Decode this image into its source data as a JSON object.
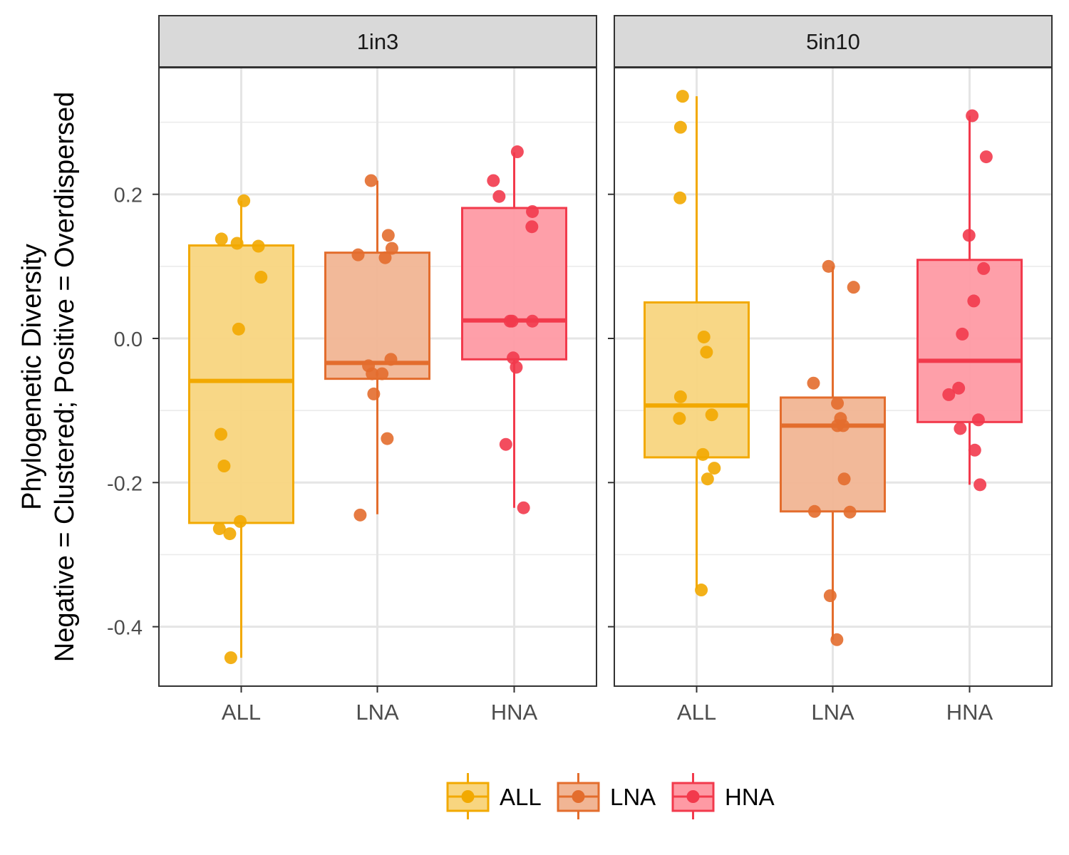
{
  "chart_data": {
    "type": "boxplot",
    "ylabel_lines": [
      "Phylogenetic Diversity",
      "Negative = Clustered; Positive = Overdispersed"
    ],
    "xlabel": "",
    "categories": [
      "ALL",
      "LNA",
      "HNA"
    ],
    "y_ticks": [
      "0.2",
      "0.0",
      "-0.2",
      "-0.4"
    ],
    "ylim": [
      -0.48,
      0.375
    ],
    "grid": true,
    "legend_position": "bottom",
    "legend": [
      {
        "name": "ALL",
        "color": "#F2A900",
        "fill": "#F8D57F"
      },
      {
        "name": "LNA",
        "color": "#E36D2D",
        "fill": "#F1B594"
      },
      {
        "name": "HNA",
        "color": "#F23A4C",
        "fill": "#FE9AA4"
      }
    ],
    "panels": [
      {
        "title": "1in3",
        "boxes": [
          {
            "category": "ALL",
            "whisker_low": -0.443,
            "q1": -0.256,
            "median": -0.059,
            "q3": 0.129,
            "whisker_high": 0.191,
            "points": [
              [
                0.05,
                0.191
              ],
              [
                -0.38,
                0.138
              ],
              [
                -0.08,
                0.132
              ],
              [
                0.33,
                0.128
              ],
              [
                0.38,
                0.085
              ],
              [
                -0.05,
                0.013
              ],
              [
                -0.39,
                -0.133
              ],
              [
                -0.33,
                -0.177
              ],
              [
                -0.02,
                -0.254
              ],
              [
                -0.42,
                -0.264
              ],
              [
                -0.22,
                -0.271
              ],
              [
                -0.2,
                -0.443
              ]
            ]
          },
          {
            "category": "LNA",
            "whisker_low": -0.244,
            "q1": -0.056,
            "median": -0.034,
            "q3": 0.119,
            "whisker_high": 0.219,
            "points": [
              [
                -0.12,
                0.219
              ],
              [
                -0.37,
                0.116
              ],
              [
                0.21,
                0.143
              ],
              [
                0.28,
                0.125
              ],
              [
                0.15,
                0.112
              ],
              [
                -0.17,
                -0.038
              ],
              [
                -0.1,
                -0.049
              ],
              [
                0.26,
                -0.029
              ],
              [
                0.09,
                -0.049
              ],
              [
                -0.07,
                -0.077
              ],
              [
                0.19,
                -0.139
              ],
              [
                -0.33,
                -0.245
              ]
            ]
          },
          {
            "category": "HNA",
            "whisker_low": -0.235,
            "q1": -0.029,
            "median": 0.025,
            "q3": 0.181,
            "whisker_high": 0.258,
            "points": [
              [
                0.06,
                0.259
              ],
              [
                -0.4,
                0.219
              ],
              [
                -0.29,
                0.197
              ],
              [
                0.35,
                0.176
              ],
              [
                0.34,
                0.155
              ],
              [
                -0.08,
                0.024
              ],
              [
                -0.04,
                0.024
              ],
              [
                0.35,
                0.024
              ],
              [
                -0.02,
                -0.027
              ],
              [
                0.04,
                -0.04
              ],
              [
                -0.16,
                -0.147
              ],
              [
                0.18,
                -0.235
              ]
            ]
          }
        ]
      },
      {
        "title": "5in10",
        "boxes": [
          {
            "category": "ALL",
            "whisker_low": -0.347,
            "q1": -0.165,
            "median": -0.093,
            "q3": 0.05,
            "whisker_high": 0.336,
            "points": [
              [
                -0.27,
                0.336
              ],
              [
                -0.31,
                0.293
              ],
              [
                -0.32,
                0.195
              ],
              [
                0.14,
                0.002
              ],
              [
                0.19,
                -0.019
              ],
              [
                -0.31,
                -0.081
              ],
              [
                -0.33,
                -0.111
              ],
              [
                0.29,
                -0.106
              ],
              [
                0.12,
                -0.161
              ],
              [
                0.21,
                -0.195
              ],
              [
                0.34,
                -0.18
              ],
              [
                0.09,
                -0.349
              ]
            ]
          },
          {
            "category": "LNA",
            "whisker_low": -0.418,
            "q1": -0.24,
            "median": -0.121,
            "q3": -0.082,
            "whisker_high": 0.1,
            "points": [
              [
                -0.08,
                0.1
              ],
              [
                0.4,
                0.071
              ],
              [
                -0.37,
                -0.062
              ],
              [
                0.09,
                -0.09
              ],
              [
                0.15,
                -0.111
              ],
              [
                0.09,
                -0.121
              ],
              [
                0.2,
                -0.121
              ],
              [
                0.22,
                -0.195
              ],
              [
                -0.35,
                -0.24
              ],
              [
                0.33,
                -0.241
              ],
              [
                -0.05,
                -0.357
              ],
              [
                0.08,
                -0.418
              ]
            ]
          },
          {
            "category": "HNA",
            "whisker_low": -0.203,
            "q1": -0.116,
            "median": -0.031,
            "q3": 0.109,
            "whisker_high": 0.309,
            "points": [
              [
                0.05,
                0.309
              ],
              [
                0.32,
                0.252
              ],
              [
                -0.01,
                0.143
              ],
              [
                0.27,
                0.097
              ],
              [
                0.08,
                0.052
              ],
              [
                -0.14,
                0.006
              ],
              [
                -0.4,
                -0.078
              ],
              [
                -0.21,
                -0.069
              ],
              [
                -0.18,
                -0.125
              ],
              [
                0.17,
                -0.113
              ],
              [
                0.1,
                -0.155
              ],
              [
                0.2,
                -0.203
              ]
            ]
          }
        ]
      }
    ]
  }
}
